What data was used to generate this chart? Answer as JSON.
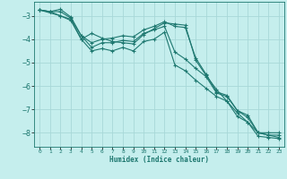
{
  "xlabel": "Humidex (Indice chaleur)",
  "bg_color": "#c5eeed",
  "grid_color": "#a8d8d8",
  "line_color": "#1e7870",
  "xlim": [
    -0.5,
    23.5
  ],
  "ylim": [
    -8.6,
    -2.4
  ],
  "yticks": [
    -8,
    -7,
    -6,
    -5,
    -4,
    -3
  ],
  "xticks": [
    0,
    1,
    2,
    3,
    4,
    5,
    6,
    7,
    8,
    9,
    10,
    11,
    12,
    13,
    14,
    15,
    16,
    17,
    18,
    19,
    20,
    21,
    22,
    23
  ],
  "line1_x": [
    0,
    1,
    2,
    3,
    4,
    5,
    6,
    7,
    8,
    9,
    10,
    11,
    12,
    13,
    14,
    15,
    16,
    17,
    18,
    19,
    20,
    21,
    22,
    23
  ],
  "line1_y": [
    -2.75,
    -2.82,
    -2.72,
    -3.05,
    -3.85,
    -4.15,
    -4.0,
    -3.95,
    -3.85,
    -3.9,
    -3.6,
    -3.45,
    -3.25,
    -3.45,
    -3.5,
    -4.8,
    -5.5,
    -6.25,
    -6.4,
    -7.05,
    -7.25,
    -8.0,
    -8.1,
    -8.1
  ],
  "line2_x": [
    0,
    1,
    2,
    3,
    4,
    5,
    6,
    7,
    8,
    9,
    10,
    11,
    12,
    13,
    14,
    15,
    16,
    17,
    18,
    19,
    20,
    21,
    22,
    23
  ],
  "line2_y": [
    -2.75,
    -2.82,
    -2.82,
    -3.1,
    -3.85,
    -4.35,
    -4.15,
    -4.15,
    -4.05,
    -4.1,
    -3.75,
    -3.6,
    -3.45,
    -4.55,
    -4.85,
    -5.25,
    -5.6,
    -6.3,
    -6.45,
    -7.05,
    -7.35,
    -8.0,
    -8.1,
    -8.2
  ],
  "line3_x": [
    0,
    2,
    3,
    4,
    5,
    6,
    7,
    8,
    9,
    10,
    11,
    12,
    13,
    14,
    15,
    16,
    17,
    18,
    19,
    20,
    21,
    22,
    23
  ],
  "line3_y": [
    -2.75,
    -3.0,
    -3.2,
    -4.0,
    -4.5,
    -4.4,
    -4.5,
    -4.35,
    -4.5,
    -4.1,
    -4.0,
    -3.7,
    -5.1,
    -5.35,
    -5.75,
    -6.1,
    -6.45,
    -6.65,
    -7.3,
    -7.55,
    -8.15,
    -8.2,
    -8.25
  ],
  "line4_x": [
    0,
    1,
    2,
    3,
    4,
    5,
    6,
    7,
    8,
    9,
    10,
    11,
    12,
    13,
    14,
    15,
    16,
    17,
    18,
    19,
    20,
    21,
    22,
    23
  ],
  "line4_y": [
    -2.75,
    -2.82,
    -3.0,
    -3.15,
    -4.0,
    -3.75,
    -3.95,
    -4.1,
    -4.15,
    -4.2,
    -3.8,
    -3.55,
    -3.3,
    -3.35,
    -3.4,
    -4.9,
    -5.55,
    -6.15,
    -6.65,
    -7.15,
    -7.55,
    -8.0,
    -8.0,
    -8.0
  ]
}
